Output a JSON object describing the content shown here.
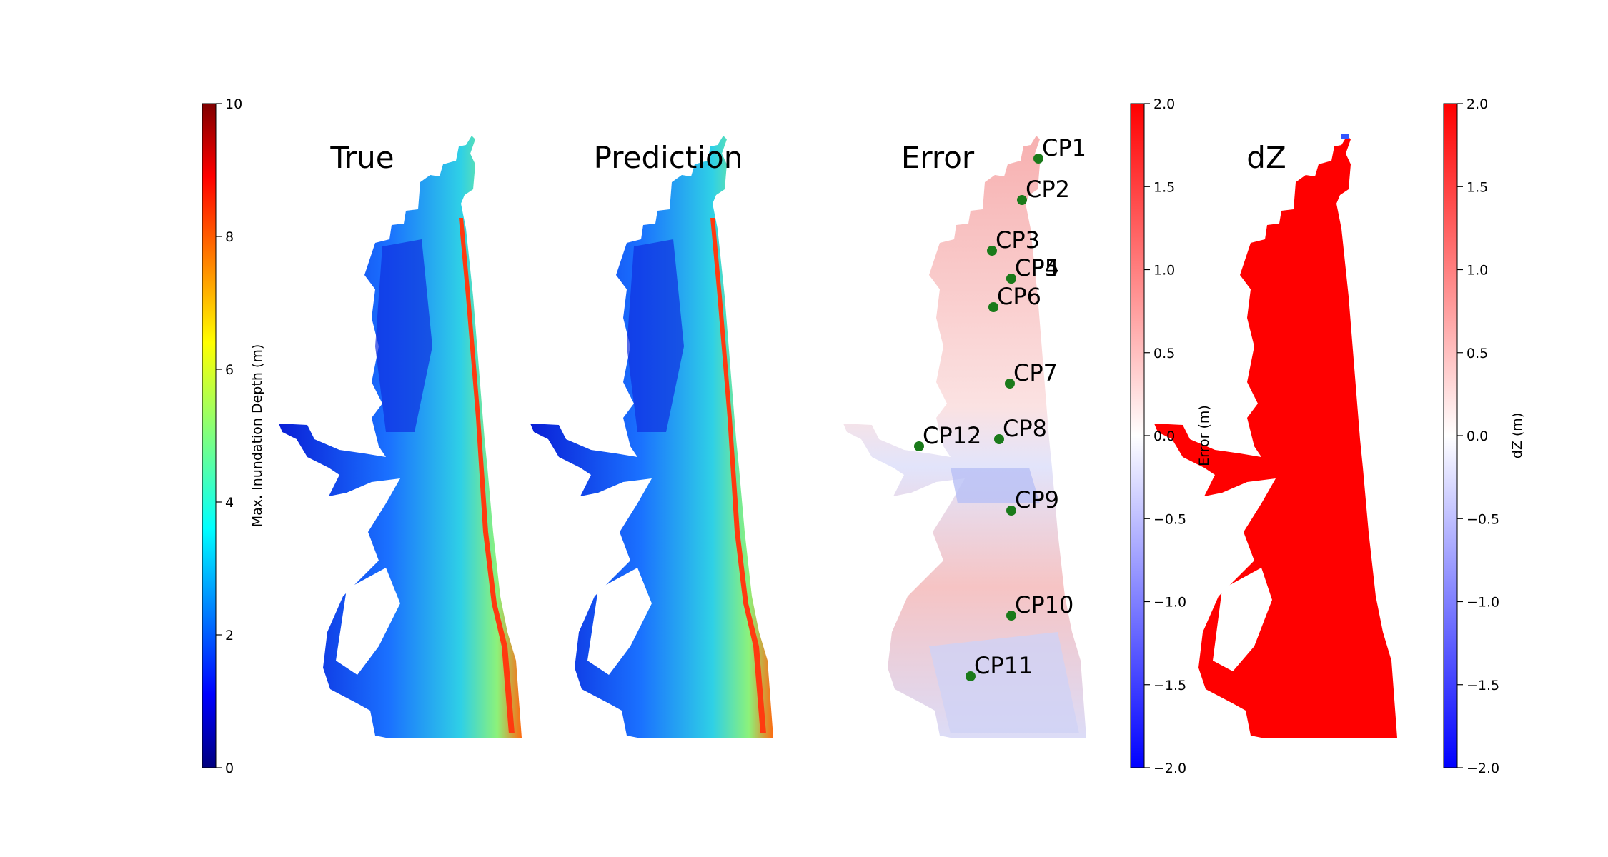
{
  "figure": {
    "panels": [
      {
        "id": "true",
        "title": "True"
      },
      {
        "id": "prediction",
        "title": "Prediction"
      },
      {
        "id": "error",
        "title": "Error"
      },
      {
        "id": "dz",
        "title": "dZ"
      }
    ]
  },
  "chart_data": [
    {
      "type": "heatmap",
      "panel": "True",
      "title": "True",
      "colormap": "jet",
      "colorbar": {
        "label": "Max. Inundation Depth (m)",
        "range": [
          0,
          10
        ],
        "ticks": [
          "0",
          "2",
          "4",
          "6",
          "8",
          "10"
        ],
        "colors": [
          "#00007f",
          "#0000ff",
          "#007fff",
          "#00ffff",
          "#7fff7f",
          "#ffff00",
          "#ff7f00",
          "#ff0000",
          "#7f0000"
        ]
      }
    },
    {
      "type": "heatmap",
      "panel": "Prediction",
      "title": "Prediction",
      "colormap": "jet",
      "colorbar": "shared with True panel"
    },
    {
      "type": "heatmap",
      "panel": "Error",
      "title": "Error",
      "colormap": "bwr",
      "colorbar": {
        "label": "Error (m)",
        "range": [
          -2.0,
          2.0
        ],
        "ticks": [
          "−2.0",
          "−1.5",
          "−1.0",
          "−0.5",
          "0.0",
          "0.5",
          "1.0",
          "1.5",
          "2.0"
        ],
        "colors": [
          "#0000ff",
          "#ffffff",
          "#ff0000"
        ]
      },
      "control_points": [
        "CP1",
        "CP2",
        "CP3",
        "CP4",
        "CP5",
        "CP6",
        "CP7",
        "CP8",
        "CP9",
        "CP10",
        "CP11",
        "CP12"
      ],
      "marker_color": "#1a7a1a"
    },
    {
      "type": "heatmap",
      "panel": "dZ",
      "title": "dZ",
      "colormap": "bwr",
      "colorbar": {
        "label": "dZ (m)",
        "range": [
          -2.0,
          2.0
        ],
        "ticks": [
          "−2.0",
          "−1.5",
          "−1.0",
          "−0.5",
          "0.0",
          "0.5",
          "1.0",
          "1.5",
          "2.0"
        ],
        "colors": [
          "#0000ff",
          "#ffffff",
          "#ff0000"
        ]
      }
    }
  ]
}
